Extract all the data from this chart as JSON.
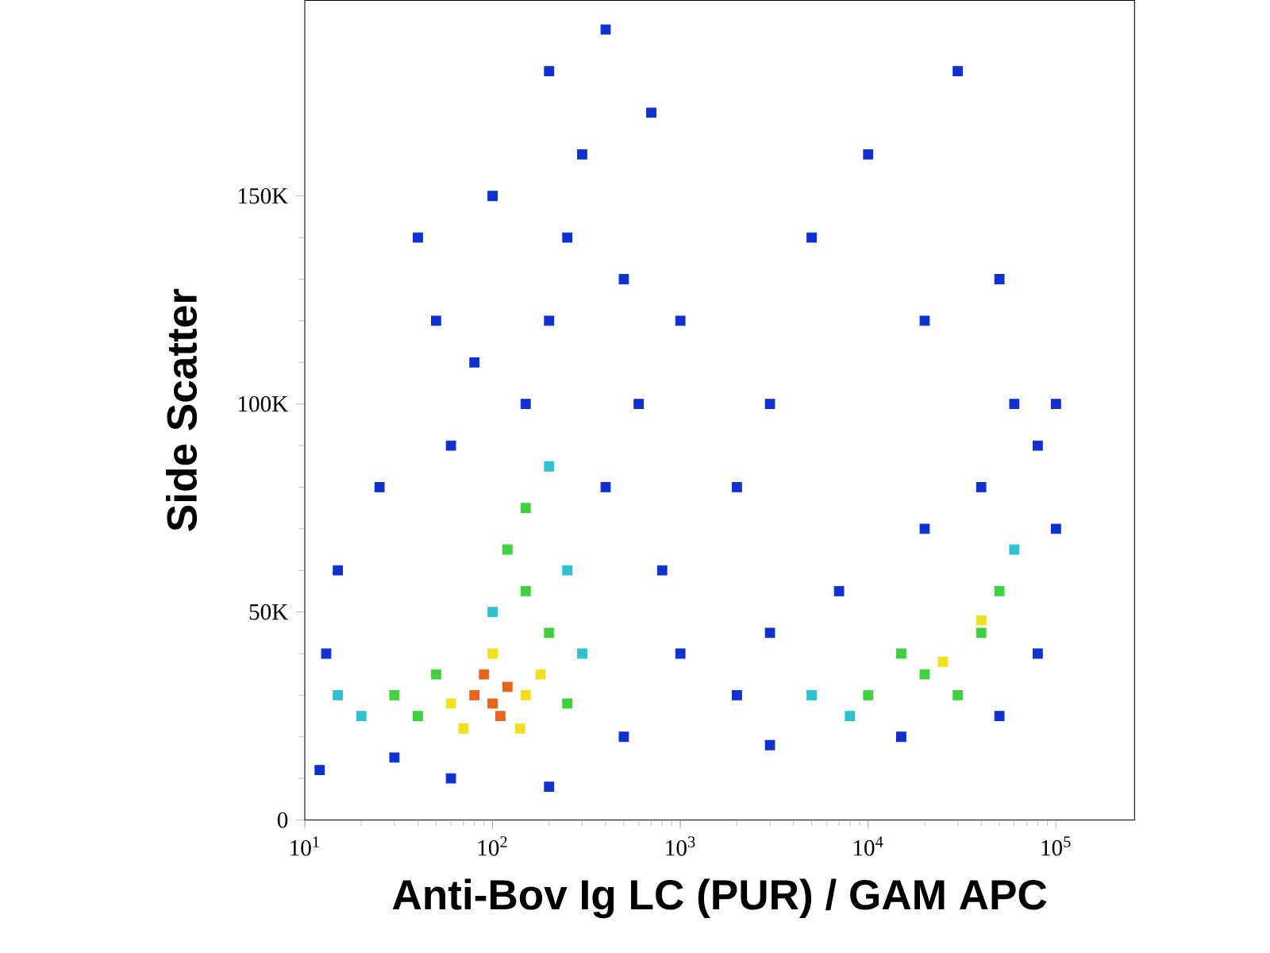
{
  "chart_data": {
    "type": "scatter",
    "xlabel": "Anti-Bov Ig LC (PUR) / GAM APC",
    "ylabel": "Side Scatter",
    "log": "x",
    "marker": "square",
    "grid": false,
    "xlim": [
      10,
      262144
    ],
    "ylim": [
      0,
      197000
    ],
    "xticks": [
      {
        "value": 10,
        "label": "10$^{1}$"
      },
      {
        "value": 100,
        "label": "10$^{2}$"
      },
      {
        "value": 1000,
        "label": "10$^{3}$"
      },
      {
        "value": 10000,
        "label": "10$^{4}$"
      },
      {
        "value": 100000,
        "label": "10$^{5}$"
      }
    ],
    "yticks": [
      0,
      {
        "value": 50000,
        "label": "50K"
      },
      {
        "value": 100000,
        "label": "100K"
      },
      {
        "value": 150000,
        "label": "150K"
      }
    ],
    "series": [
      {
        "x": [
          80,
          100,
          120,
          110,
          90,
          60,
          150,
          100,
          70,
          140,
          180,
          40,
          50,
          200,
          150,
          120,
          250,
          30,
          150,
          20,
          250,
          200,
          300,
          15,
          100,
          150,
          200,
          250,
          300,
          200,
          400,
          100,
          500,
          80,
          60,
          50,
          700,
          1000,
          600,
          400,
          800,
          2000,
          3000,
          5000,
          10000,
          30000,
          20000,
          50000,
          1000,
          2000,
          500,
          3000,
          30,
          60,
          200,
          12,
          15,
          25,
          40,
          13,
          20000,
          40000,
          10000,
          30000,
          50000,
          15000,
          40000,
          25000,
          60000,
          8000,
          5000,
          80000,
          60000,
          100000,
          40000,
          20000,
          7000,
          100000,
          3000,
          15000,
          80000,
          50000
        ],
        "values": [
          30000,
          28000,
          32000,
          25000,
          35000,
          28000,
          30000,
          40000,
          22000,
          22000,
          35000,
          25000,
          35000,
          45000,
          55000,
          65000,
          28000,
          30000,
          75000,
          25000,
          60000,
          85000,
          40000,
          30000,
          50000,
          100000,
          120000,
          140000,
          160000,
          180000,
          190000,
          150000,
          130000,
          110000,
          90000,
          120000,
          170000,
          120000,
          100000,
          80000,
          60000,
          80000,
          100000,
          140000,
          160000,
          180000,
          120000,
          130000,
          40000,
          30000,
          20000,
          18000,
          15000,
          10000,
          8000,
          12000,
          60000,
          80000,
          140000,
          40000,
          35000,
          45000,
          30000,
          30000,
          55000,
          40000,
          48000,
          38000,
          65000,
          25000,
          30000,
          90000,
          100000,
          70000,
          80000,
          70000,
          55000,
          100000,
          45000,
          20000,
          40000,
          25000
        ],
        "colors": [
          "#e8641e",
          "#e8641e",
          "#e8641e",
          "#e8641e",
          "#e8641e",
          "#f0e020",
          "#f0e020",
          "#f0e020",
          "#f0e020",
          "#f0e020",
          "#f0e020",
          "#40d040",
          "#40d040",
          "#40d040",
          "#40d040",
          "#40d040",
          "#40d040",
          "#40d040",
          "#40d040",
          "#30c0d0",
          "#30c0d0",
          "#30c0d0",
          "#30c0d0",
          "#30c0d0",
          "#30c0d0",
          "#1030d0",
          "#1030d0",
          "#1030d0",
          "#1030d0",
          "#1030d0",
          "#1030d0",
          "#1030d0",
          "#1030d0",
          "#1030d0",
          "#1030d0",
          "#1030d0",
          "#1030d0",
          "#1030d0",
          "#1030d0",
          "#1030d0",
          "#1030d0",
          "#1030d0",
          "#1030d0",
          "#1030d0",
          "#1030d0",
          "#1030d0",
          "#1030d0",
          "#1030d0",
          "#1030d0",
          "#1030d0",
          "#1030d0",
          "#1030d0",
          "#1030d0",
          "#1030d0",
          "#1030d0",
          "#1030d0",
          "#1030d0",
          "#1030d0",
          "#1030d0",
          "#1030d0",
          "#40d040",
          "#40d040",
          "#40d040",
          "#40d040",
          "#40d040",
          "#40d040",
          "#f0e020",
          "#f0e020",
          "#30c0d0",
          "#30c0d0",
          "#30c0d0",
          "#1030d0",
          "#1030d0",
          "#1030d0",
          "#1030d0",
          "#1030d0",
          "#1030d0",
          "#1030d0",
          "#1030d0",
          "#1030d0",
          "#1030d0",
          "#1030d0"
        ]
      }
    ]
  }
}
